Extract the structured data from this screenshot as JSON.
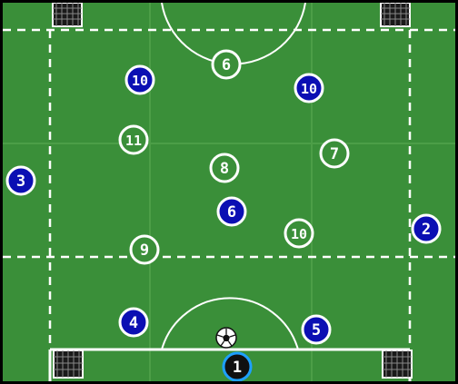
{
  "colors": {
    "pitch": "#3a8f39",
    "stripe": "#4c9e47",
    "line": "#ffffff",
    "team_blue_fill": "#0b0fb3",
    "team_white_fill": "#3a8f39",
    "keeper_fill": "#101010",
    "keeper_ring": "#1ea0ff"
  },
  "icons": {
    "goal": "goal-net-icon",
    "ball": "soccer-ball-icon"
  },
  "players": [
    {
      "team": "white",
      "number": "6"
    },
    {
      "team": "blue",
      "number": "10"
    },
    {
      "team": "blue",
      "number": "10"
    },
    {
      "team": "white",
      "number": "11"
    },
    {
      "team": "white",
      "number": "7"
    },
    {
      "team": "white",
      "number": "8"
    },
    {
      "team": "blue",
      "number": "3"
    },
    {
      "team": "blue",
      "number": "6"
    },
    {
      "team": "white",
      "number": "10"
    },
    {
      "team": "blue",
      "number": "2"
    },
    {
      "team": "white",
      "number": "9"
    },
    {
      "team": "blue",
      "number": "4"
    },
    {
      "team": "blue",
      "number": "5"
    },
    {
      "team": "keeper",
      "number": "1"
    }
  ]
}
